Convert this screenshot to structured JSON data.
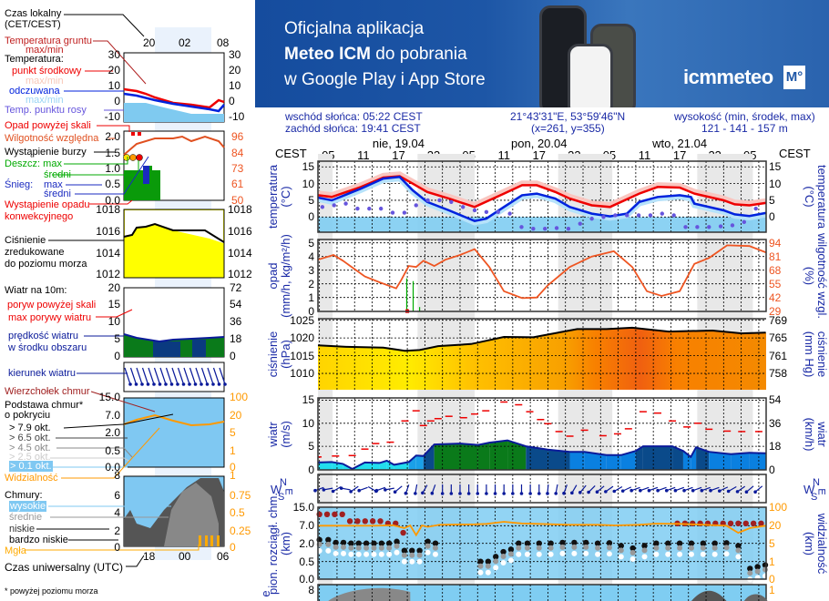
{
  "banner": {
    "line1": "Oficjalna aplikacja",
    "line2_bold": "Meteo ICM",
    "line2_rest": " do pobrania",
    "line3": "w Google Play i App Store",
    "logo": "icmmeteo",
    "logo_badge": "M°"
  },
  "legend": {
    "local_time": "Czas lokalny",
    "local_time_zone": "(CET/CEST)",
    "top_times": [
      "20",
      "02",
      "08"
    ],
    "ground_temp": "Temperatura gruntu",
    "ground_temp_mm": "max/min",
    "temperature": "Temperatura:",
    "mid_point": "punkt środkowy",
    "mid_mm": "max/min",
    "feels": "odczuwana",
    "feels_mm": "max/min",
    "dew": "Temp. punktu rosy",
    "temp_ticks": [
      "30",
      "20",
      "10",
      "0",
      "-10"
    ],
    "precip_over": "Opad powyżej skali",
    "humidity": "Wilgotność względna",
    "storm": "Wystąpienie burzy",
    "rain_max": "Deszcz: max",
    "rain_avg": "średni",
    "snow": "Śnieg:",
    "snow_max": "max",
    "snow_avg": "średni",
    "conv": "Wystąpienie opadu",
    "conv2": "konwekcyjnego",
    "precip_ticks": [
      "2.0",
      "1.5",
      "1.0",
      "0.5",
      "0.0"
    ],
    "hum_ticks": [
      "96",
      "84",
      "73",
      "61",
      "50"
    ],
    "pressure1": "Ciśnienie",
    "pressure2": "zredukowane",
    "pressure3": "do poziomu morza",
    "pressure_ticks": [
      "1018",
      "1016",
      "1014",
      "1012"
    ],
    "wind_title": "Wiatr na 10m:",
    "gust_over": "poryw powyżej skali",
    "gust_max": "max porywy wiatru",
    "wind_speed": "prędkość wiatru",
    "wind_speed2": "w środku obszaru",
    "wind_ticks": [
      "20",
      "15",
      "10",
      "5",
      "0"
    ],
    "wind_ticks_kmh": [
      "72",
      "54",
      "36",
      "18",
      "0"
    ],
    "wind_dir": "kierunek wiatru",
    "cloud_top": "Wierzchołek chmur",
    "cloud_base": "Podstawa chmur*",
    "cloud_base2": "o pokryciu",
    "okt": [
      "> 7.9 okt.",
      "> 6.5 okt.",
      "> 4.5 okt.",
      "> 2.5 okt.",
      "> 0.1 okt."
    ],
    "cloud_ticks": [
      "15.0",
      "7.0",
      "2.0",
      "0.5",
      "0.0"
    ],
    "vis_ticks": [
      "100",
      "20",
      "5",
      "1",
      "0"
    ],
    "visibility": "Widzialność",
    "clouds": "Chmury:",
    "high": "wysokie",
    "mid": "średnie",
    "low": "niskie",
    "vlow": "bardzo niskie",
    "fog": "Mgła",
    "cc_ticks": [
      "8",
      "6",
      "4",
      "2",
      "0"
    ],
    "cc_ticks_r": [
      "1",
      "0.75",
      "0.5",
      "0.25",
      "0"
    ],
    "bottom_times": [
      "18",
      "00",
      "06"
    ],
    "utc": "Czas uniwersalny (UTC)",
    "footnote": "* powyżej poziomu morza"
  },
  "header": {
    "sunrise": "wschód słońca: 05:22 CEST",
    "sunset": "zachód słońca: 19:41 CEST",
    "coords": "21°43'31\"E, 53°59'46\"N",
    "grid": "(x=261, y=355)",
    "elev_label": "wysokość (min, środek, max)",
    "elev": "121 - 141 - 157 m",
    "tz_left": "CEST",
    "tz_right": "CEST",
    "days": [
      "nie, 19.04",
      "pon, 20.04",
      "wto, 21.04"
    ],
    "hours": [
      "05",
      "11",
      "17",
      "23",
      "05",
      "11",
      "17",
      "23",
      "05",
      "11",
      "17",
      "23",
      "05"
    ]
  },
  "panels": {
    "temp": {
      "left1": "temperatura",
      "left2": "(°C)",
      "right1": "(°C)",
      "right2": "temperatura",
      "ticks": [
        "15",
        "10",
        "5",
        "0"
      ]
    },
    "precip": {
      "left1": "opad",
      "left2": "(mm/h, kg/m²/h)",
      "right1": "(%)",
      "right2": "wilgotność wzgl.",
      "ticks": [
        "5",
        "4",
        "3",
        "2",
        "1",
        "0"
      ],
      "ticks_r": [
        "94",
        "81",
        "68",
        "55",
        "42",
        "29"
      ]
    },
    "pressure": {
      "left1": "ciśnienie",
      "left2": "(hPa)",
      "right1": "(mm Hg)",
      "right2": "ciśnienie",
      "ticks": [
        "1025",
        "1020",
        "1015",
        "1010"
      ],
      "ticks_r": [
        "769",
        "765",
        "761",
        "758"
      ]
    },
    "wind": {
      "left1": "wiatr",
      "left2": "(m/s)",
      "right1": "(km/h)",
      "right2": "wiatr",
      "ticks": [
        "15",
        "10",
        "5",
        "0"
      ],
      "ticks_r": [
        "54",
        "36",
        "18",
        "0"
      ]
    },
    "dir": {
      "compass_n": "N",
      "compass_w": "W",
      "compass_s": "S",
      "compass_e": "E"
    },
    "cloud": {
      "left1": "pion. rozciągł. chm.",
      "left2": "(km)",
      "right1": "(km)",
      "right2": "widzialność",
      "ticks": [
        "15.0",
        "7.0",
        "2.0",
        "0.5",
        "0.0"
      ],
      "ticks_r": [
        "100",
        "20",
        "5",
        "1",
        "0"
      ]
    },
    "cover": {
      "left1": "e",
      "ticks": [
        "8"
      ],
      "ticks_r": [
        "1"
      ]
    }
  },
  "colors": {
    "temp": "#ee0000",
    "feels": "#0022dd",
    "dew": "#6655dd",
    "humidity": "#ee5522",
    "night": "#e8e8e8",
    "rain": "#00aa00",
    "visibility": "#ff9900",
    "cloud_top": "#a02020"
  },
  "chart_data": {
    "type": "line",
    "x_unit": "hours from Sunday 19.04 05:00 CEST",
    "temperature_mean": [
      [
        -1.75,
        6.5
      ],
      [
        0.6,
        6
      ],
      [
        5.6,
        9
      ],
      [
        9.4,
        11.8
      ],
      [
        12.2,
        12.2
      ],
      [
        14.4,
        10
      ],
      [
        16.9,
        7.5
      ],
      [
        20.6,
        5.5
      ],
      [
        25,
        3
      ],
      [
        30,
        7
      ],
      [
        33.1,
        9.5
      ],
      [
        35.6,
        9.5
      ],
      [
        38.75,
        7.5
      ],
      [
        41.25,
        5.5
      ],
      [
        45,
        3.5
      ],
      [
        48.1,
        3
      ],
      [
        53.1,
        7
      ],
      [
        56.25,
        9
      ],
      [
        60,
        8.8
      ],
      [
        62.5,
        7
      ],
      [
        67.5,
        5
      ],
      [
        69.4,
        3.8
      ],
      [
        71.9,
        3.5
      ],
      [
        74.7,
        4.2
      ]
    ],
    "temperature_feels": [
      [
        -1.75,
        5.8
      ],
      [
        0.6,
        5
      ],
      [
        5.6,
        8.5
      ],
      [
        9.4,
        11.5
      ],
      [
        12.2,
        12
      ],
      [
        14.4,
        8
      ],
      [
        16.9,
        4.5
      ],
      [
        20.6,
        2
      ],
      [
        25,
        -1.2
      ],
      [
        27,
        -0.5
      ],
      [
        30,
        3
      ],
      [
        33.1,
        6.5
      ],
      [
        35.6,
        7
      ],
      [
        38.75,
        5.5
      ],
      [
        41.25,
        3
      ],
      [
        45,
        1
      ],
      [
        48.1,
        0.2
      ],
      [
        51,
        1
      ],
      [
        53.1,
        4.5
      ],
      [
        56.25,
        6
      ],
      [
        60,
        6.5
      ],
      [
        61.9,
        6
      ],
      [
        62.5,
        4
      ],
      [
        67.5,
        2
      ],
      [
        69.4,
        0.8
      ],
      [
        71.9,
        0.3
      ],
      [
        74.7,
        1.2
      ]
    ],
    "dew_point": {
      "start": -1,
      "step": 2,
      "values": [
        3,
        3.5,
        4,
        2.5,
        2.5,
        2.5,
        1.3,
        1.3,
        3.5,
        5,
        5,
        4.5,
        3,
        2,
        1.5,
        1.5,
        1,
        -3,
        -3.5,
        -3.5,
        -3.3,
        -3.5,
        -2,
        -0.5,
        0,
        0.5,
        0.5,
        0.5,
        0.5,
        1,
        0.5,
        -3,
        -3,
        -3,
        -2.8,
        -2.5,
        -1.5,
        2.5,
        2.5
      ]
    },
    "humidity": [
      [
        -1.75,
        78
      ],
      [
        0.9,
        82.5
      ],
      [
        2.5,
        77
      ],
      [
        6.25,
        62
      ],
      [
        8.75,
        56.5
      ],
      [
        11.6,
        50.7
      ],
      [
        12.5,
        59
      ],
      [
        13.75,
        72
      ],
      [
        15,
        71
      ],
      [
        16.25,
        77
      ],
      [
        18.1,
        72
      ],
      [
        20,
        78
      ],
      [
        22.5,
        82.5
      ],
      [
        25,
        88
      ],
      [
        27.5,
        71
      ],
      [
        30,
        48
      ],
      [
        33.1,
        41.4
      ],
      [
        35.6,
        42
      ],
      [
        37.5,
        53.6
      ],
      [
        41.25,
        71
      ],
      [
        45,
        81
      ],
      [
        48.75,
        86
      ],
      [
        51.9,
        71
      ],
      [
        54.4,
        48
      ],
      [
        56.9,
        43.5
      ],
      [
        60,
        48
      ],
      [
        62.5,
        74
      ],
      [
        65,
        79.6
      ],
      [
        68.1,
        91.7
      ],
      [
        71.9,
        91
      ],
      [
        74.7,
        85
      ]
    ],
    "precipitation": [
      [
        13.4,
        2.4
      ],
      [
        14.5,
        2.2
      ],
      [
        15.6,
        0.3
      ]
    ],
    "pressure": [
      [
        -1.75,
        1017.9
      ],
      [
        3.1,
        1017.5
      ],
      [
        9.4,
        1017.3
      ],
      [
        13.1,
        1016.4
      ],
      [
        15.6,
        1016.6
      ],
      [
        18.75,
        1017.7
      ],
      [
        24.4,
        1018.3
      ],
      [
        30,
        1020.3
      ],
      [
        35,
        1020.2
      ],
      [
        42.5,
        1022.5
      ],
      [
        47.5,
        1022.5
      ],
      [
        51.9,
        1022.9
      ],
      [
        58.1,
        1021.8
      ],
      [
        65.6,
        1022.1
      ],
      [
        70.6,
        1021.3
      ],
      [
        74.7,
        1021.5
      ]
    ],
    "wind_speed": [
      [
        -1.75,
        1.5
      ],
      [
        0.6,
        1.6
      ],
      [
        2.5,
        1.2
      ],
      [
        4.1,
        0.1
      ],
      [
        6.25,
        1.5
      ],
      [
        8.75,
        1.4
      ],
      [
        10,
        1.9
      ],
      [
        11.25,
        1
      ],
      [
        13.75,
        1.6
      ],
      [
        15,
        3
      ],
      [
        16.25,
        2.9
      ],
      [
        18.1,
        5.4
      ],
      [
        22.5,
        5.6
      ],
      [
        25.6,
        5.3
      ],
      [
        27.5,
        5.8
      ],
      [
        30.6,
        6.3
      ],
      [
        33.75,
        5
      ],
      [
        37.5,
        4.3
      ],
      [
        41.25,
        3.8
      ],
      [
        43.75,
        3.8
      ],
      [
        47.5,
        3.1
      ],
      [
        50,
        3.1
      ],
      [
        52.5,
        4
      ],
      [
        53.75,
        5
      ],
      [
        58.75,
        5
      ],
      [
        60.6,
        4
      ],
      [
        61.9,
        2.7
      ],
      [
        62.8,
        4.8
      ],
      [
        65,
        3.8
      ],
      [
        68.75,
        3.3
      ],
      [
        71.9,
        3.6
      ],
      [
        74.7,
        3.5
      ]
    ],
    "wind_gust": [
      [
        -1.75,
        2.7
      ],
      [
        1.25,
        2.9
      ],
      [
        4.1,
        3
      ],
      [
        6.25,
        4.4
      ],
      [
        8.1,
        5.6
      ],
      [
        10.6,
        5.9
      ],
      [
        13.1,
        10.5
      ],
      [
        15,
        12.7
      ],
      [
        16.25,
        9.5
      ],
      [
        17.5,
        10.5
      ],
      [
        18.75,
        11
      ],
      [
        20.6,
        11.5
      ],
      [
        23.1,
        11.2
      ],
      [
        25,
        12
      ],
      [
        26.9,
        12.7
      ],
      [
        30,
        14.6
      ],
      [
        32.5,
        14
      ],
      [
        34.4,
        12.5
      ],
      [
        36.25,
        10.8
      ],
      [
        37.5,
        9.9
      ],
      [
        39.4,
        8.2
      ],
      [
        41.25,
        7.2
      ],
      [
        43.75,
        8.5
      ],
      [
        46.9,
        7.3
      ],
      [
        49.4,
        7.7
      ],
      [
        51.25,
        8.8
      ],
      [
        53.75,
        12.5
      ],
      [
        56.25,
        12.2
      ],
      [
        58.75,
        10.5
      ],
      [
        61.25,
        9.2
      ],
      [
        63.1,
        10
      ],
      [
        65,
        8.7
      ],
      [
        68.1,
        8.3
      ],
      [
        70.6,
        8.2
      ],
      [
        73.5,
        8.2
      ]
    ],
    "wind_direction_deg": {
      "start": -1.5,
      "step": 1.5,
      "values": [
        200,
        190,
        210,
        170,
        215,
        200,
        330,
        200,
        190,
        220,
        250,
        260,
        240,
        250,
        270,
        270,
        270,
        270,
        270,
        270,
        270,
        270,
        270,
        270,
        270,
        270,
        265,
        260,
        250,
        240,
        230,
        225,
        220,
        215,
        210,
        205,
        200,
        200,
        200,
        200,
        200,
        200,
        200,
        200,
        200,
        200,
        205,
        210,
        215,
        220,
        220,
        215,
        210
      ]
    },
    "visibility_km": [
      [
        -1.75,
        20
      ],
      [
        8,
        20
      ],
      [
        11,
        22
      ],
      [
        13,
        18
      ],
      [
        14,
        21
      ],
      [
        15,
        12
      ],
      [
        16,
        21
      ],
      [
        17,
        19
      ],
      [
        19,
        24
      ],
      [
        25,
        26
      ],
      [
        27,
        28
      ],
      [
        30,
        37
      ],
      [
        33,
        30
      ],
      [
        36,
        28
      ],
      [
        41,
        24
      ],
      [
        46,
        24
      ],
      [
        49,
        21
      ],
      [
        53,
        24
      ],
      [
        56,
        29
      ],
      [
        60,
        28
      ],
      [
        63,
        25
      ],
      [
        66,
        22
      ],
      [
        68,
        20
      ],
      [
        70,
        14
      ],
      [
        72,
        18
      ],
      [
        74.7,
        20
      ]
    ],
    "cloud_top_km": {
      "start": -1.5,
      "step": 1.3,
      "values": [
        12,
        12,
        12,
        12,
        9,
        9,
        9,
        9,
        9,
        8,
        8,
        5,
        null,
        null,
        null,
        null,
        null,
        null,
        null,
        null,
        null,
        null,
        null,
        null,
        null,
        null,
        null,
        null,
        null,
        null,
        null,
        null,
        null,
        null,
        null,
        null,
        null,
        null,
        null,
        null,
        null,
        null,
        null,
        null,
        null,
        null,
        null,
        8,
        8,
        8,
        8,
        8,
        8,
        8,
        8,
        8,
        8,
        8,
        8,
        7,
        8,
        null,
        null
      ]
    },
    "cloud_base_km": [
      [
        -1.5,
        3
      ],
      [
        0,
        3
      ],
      [
        1.3,
        2.2
      ],
      [
        2.6,
        2.2
      ],
      [
        3.9,
        2
      ],
      [
        5.2,
        2
      ],
      [
        6.5,
        2
      ],
      [
        7.8,
        2
      ],
      [
        9.1,
        2
      ],
      [
        10.4,
        2
      ],
      [
        11.7,
        2.5
      ],
      [
        13,
        1.4
      ],
      [
        14.3,
        1.4
      ],
      [
        15.6,
        1.4
      ],
      [
        17,
        2.5
      ],
      [
        18.3,
        2
      ],
      [
        26,
        0.5
      ],
      [
        27.3,
        0.5
      ],
      [
        28.6,
        0.9
      ],
      [
        29.9,
        1.3
      ],
      [
        31.2,
        1.5
      ],
      [
        32.5,
        2
      ],
      [
        34,
        2
      ],
      [
        36,
        2
      ],
      [
        38,
        2
      ],
      [
        40,
        2.2
      ],
      [
        42,
        2.2
      ],
      [
        44,
        2.2
      ],
      [
        46,
        2
      ],
      [
        48,
        2.1
      ],
      [
        50,
        1.8
      ],
      [
        52,
        1.6
      ],
      [
        54,
        1.8
      ],
      [
        56,
        2
      ],
      [
        58,
        2
      ],
      [
        60,
        2
      ],
      [
        62,
        2
      ],
      [
        64,
        2
      ],
      [
        66,
        2
      ],
      [
        68,
        2.1
      ],
      [
        70,
        1.8
      ],
      [
        72,
        0.3
      ],
      [
        73.3,
        0.35
      ],
      [
        74.6,
        0.4
      ]
    ],
    "cloud_ticks": [
      "15.0",
      "7.0",
      "2.0",
      "0.5",
      "0.0"
    ],
    "visibility_ticks": [
      "100",
      "20",
      "5",
      "1",
      "0"
    ]
  }
}
